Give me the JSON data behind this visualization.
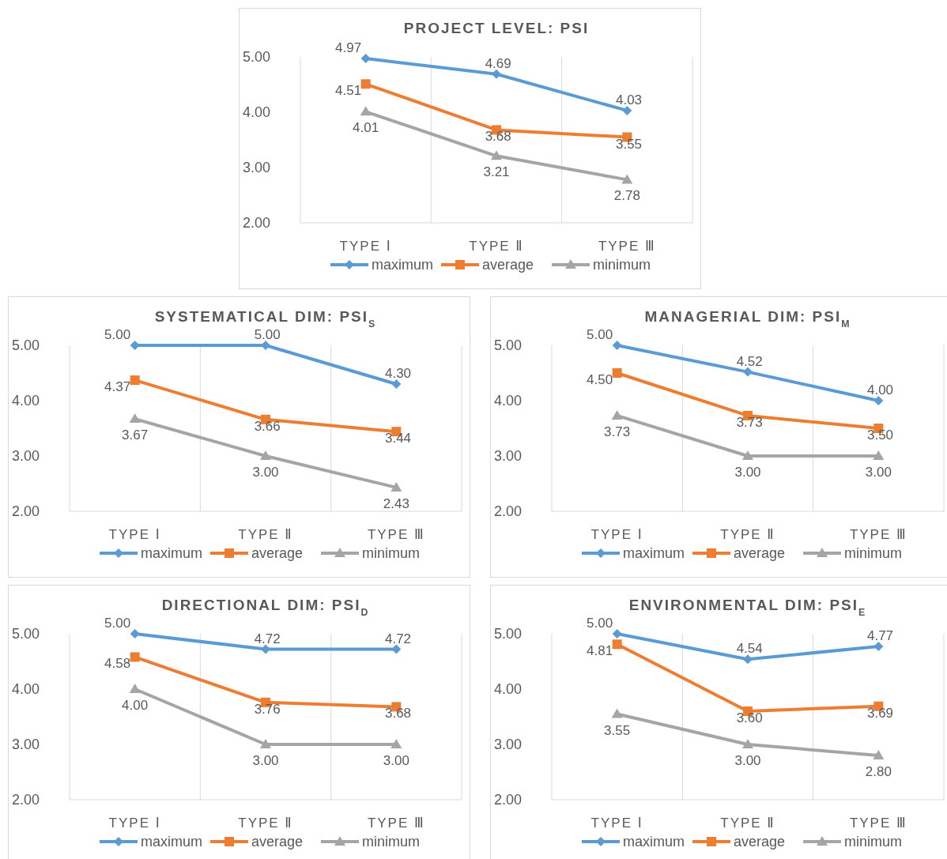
{
  "chart_data": [
    {
      "type": "line",
      "title": "PROJECT LEVEL: PSI",
      "categories": [
        "TYPE Ⅰ",
        "TYPE Ⅱ",
        "TYPE Ⅲ"
      ],
      "ylim": [
        2,
        5
      ],
      "yticks": [
        {
          "value": 2,
          "label": "2.00"
        },
        {
          "value": 3,
          "label": "3.00"
        },
        {
          "value": 4,
          "label": "4.00"
        },
        {
          "value": 5,
          "label": "5.00"
        }
      ],
      "grid": "x",
      "legend": "bottom",
      "series": [
        {
          "name": "maximum",
          "color": "#5b9bd5",
          "marker": "diamond",
          "values": [
            4.97,
            4.69,
            4.03
          ],
          "value_labels": [
            "4.97",
            "4.69",
            "4.03"
          ]
        },
        {
          "name": "average",
          "color": "#ed7d31",
          "marker": "square",
          "values": [
            4.51,
            3.68,
            3.55
          ],
          "value_labels": [
            "4.51",
            "3.68",
            "3.55"
          ]
        },
        {
          "name": "minimum",
          "color": "#a5a5a5",
          "marker": "triangle",
          "values": [
            4.01,
            3.21,
            2.78
          ],
          "value_labels": [
            "4.01",
            "3.21",
            "2.78"
          ]
        }
      ]
    },
    {
      "type": "line",
      "title": "SYSTEMATICAL DIM: PSI$_{S}$",
      "categories": [
        "TYPE Ⅰ",
        "TYPE Ⅱ",
        "TYPE Ⅲ"
      ],
      "ylim": [
        2,
        5
      ],
      "yticks": [
        {
          "value": 2,
          "label": "2.00"
        },
        {
          "value": 3,
          "label": "3.00"
        },
        {
          "value": 4,
          "label": "4.00"
        },
        {
          "value": 5,
          "label": "5.00"
        }
      ],
      "grid": "x",
      "legend": "bottom",
      "series": [
        {
          "name": "maximum",
          "color": "#5b9bd5",
          "marker": "diamond",
          "values": [
            5,
            5,
            4.3
          ],
          "value_labels": [
            "5.00",
            "5.00",
            "4.30"
          ]
        },
        {
          "name": "average",
          "color": "#ed7d31",
          "marker": "square",
          "values": [
            4.37,
            3.66,
            3.44
          ],
          "value_labels": [
            "4.37",
            "3.66",
            "3.44"
          ]
        },
        {
          "name": "minimum",
          "color": "#a5a5a5",
          "marker": "triangle",
          "values": [
            3.67,
            3,
            2.43
          ],
          "value_labels": [
            "3.67",
            "3.00",
            "2.43"
          ]
        }
      ]
    },
    {
      "type": "line",
      "title": "MANAGERIAL DIM: PSI$_{M}$",
      "categories": [
        "TYPE Ⅰ",
        "TYPE Ⅱ",
        "TYPE Ⅲ"
      ],
      "ylim": [
        2,
        5
      ],
      "yticks": [
        {
          "value": 2,
          "label": "2.00"
        },
        {
          "value": 3,
          "label": "3.00"
        },
        {
          "value": 4,
          "label": "4.00"
        },
        {
          "value": 5,
          "label": "5.00"
        }
      ],
      "grid": "x",
      "legend": "bottom",
      "series": [
        {
          "name": "maximum",
          "color": "#5b9bd5",
          "marker": "diamond",
          "values": [
            5,
            4.52,
            4
          ],
          "value_labels": [
            "5.00",
            "4.52",
            "4.00"
          ]
        },
        {
          "name": "average",
          "color": "#ed7d31",
          "marker": "square",
          "values": [
            4.5,
            3.73,
            3.5
          ],
          "value_labels": [
            "4.50",
            "3.73",
            "3.50"
          ]
        },
        {
          "name": "minimum",
          "color": "#a5a5a5",
          "marker": "triangle",
          "values": [
            3.73,
            3,
            3
          ],
          "value_labels": [
            "3.73",
            "3.00",
            "3.00"
          ]
        }
      ]
    },
    {
      "type": "line",
      "title": "DIRECTIONAL DIM: PSI$_{D}$",
      "categories": [
        "TYPE Ⅰ",
        "TYPE Ⅱ",
        "TYPE Ⅲ"
      ],
      "ylim": [
        2,
        5
      ],
      "yticks": [
        {
          "value": 2,
          "label": "2.00"
        },
        {
          "value": 3,
          "label": "3.00"
        },
        {
          "value": 4,
          "label": "4.00"
        },
        {
          "value": 5,
          "label": "5.00"
        }
      ],
      "grid": "x",
      "legend": "bottom",
      "series": [
        {
          "name": "maximum",
          "color": "#5b9bd5",
          "marker": "diamond",
          "values": [
            5,
            4.72,
            4.72
          ],
          "value_labels": [
            "5.00",
            "4.72",
            "4.72"
          ]
        },
        {
          "name": "average",
          "color": "#ed7d31",
          "marker": "square",
          "values": [
            4.58,
            3.76,
            3.68
          ],
          "value_labels": [
            "4.58",
            "3.76",
            "3.68"
          ]
        },
        {
          "name": "minimum",
          "color": "#a5a5a5",
          "marker": "triangle",
          "values": [
            4,
            3,
            3
          ],
          "value_labels": [
            "4.00",
            "3.00",
            "3.00"
          ]
        }
      ]
    },
    {
      "type": "line",
      "title": "ENVIRONMENTAL DIM: PSI$_{E}$",
      "categories": [
        "TYPE Ⅰ",
        "TYPE Ⅱ",
        "TYPE Ⅲ"
      ],
      "ylim": [
        2,
        5
      ],
      "yticks": [
        {
          "value": 2,
          "label": "2.00"
        },
        {
          "value": 3,
          "label": "3.00"
        },
        {
          "value": 4,
          "label": "4.00"
        },
        {
          "value": 5,
          "label": "5.00"
        }
      ],
      "grid": "x",
      "legend": "bottom",
      "series": [
        {
          "name": "maximum",
          "color": "#5b9bd5",
          "marker": "diamond",
          "values": [
            5,
            4.54,
            4.77
          ],
          "value_labels": [
            "5.00",
            "4.54",
            "4.77"
          ]
        },
        {
          "name": "average",
          "color": "#ed7d31",
          "marker": "square",
          "values": [
            4.81,
            3.6,
            3.69
          ],
          "value_labels": [
            "4.81",
            "3.60",
            "3.69"
          ]
        },
        {
          "name": "minimum",
          "color": "#a5a5a5",
          "marker": "triangle",
          "values": [
            3.55,
            3,
            2.8
          ],
          "value_labels": [
            "3.55",
            "3.00",
            "2.80"
          ]
        }
      ]
    }
  ]
}
